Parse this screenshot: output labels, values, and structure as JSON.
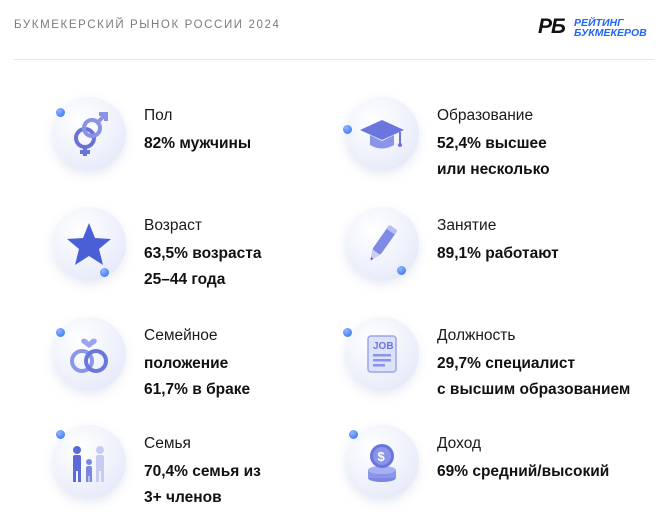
{
  "header": {
    "title": "БУКМЕКЕРСКИЙ РЫНОК РОССИИ 2024",
    "logo_mark": "РБ",
    "logo_line1": "РЕЙТИНГ",
    "logo_line2": "БУКМЕКЕРОВ"
  },
  "colors": {
    "accent": "#1e66f5",
    "icon_purple": "#6a72d8",
    "dot_blue": "#2e6cf0"
  },
  "items": [
    {
      "icon": "gender-icon",
      "label": "Пол",
      "lines": [
        "82% мужчины"
      ]
    },
    {
      "icon": "star-icon",
      "label": "Возраст",
      "lines": [
        "63,5% возраста",
        "25–44 года"
      ]
    },
    {
      "icon": "rings-icon",
      "label": "Семейное",
      "lines": [
        "положение",
        "61,7% в браке"
      ]
    },
    {
      "icon": "family-icon",
      "label": "Семья",
      "lines": [
        "70,4% семья из",
        "3+ членов"
      ]
    },
    {
      "icon": "graduation-cap-icon",
      "label": "Образование",
      "lines": [
        "52,4% высшее",
        "или несколько"
      ]
    },
    {
      "icon": "pencil-icon",
      "label": "Занятие",
      "lines": [
        "89,1% работают"
      ]
    },
    {
      "icon": "job-document-icon",
      "label": "Должность",
      "lines": [
        "29,7% специалист",
        "с высшим образованием"
      ]
    },
    {
      "icon": "coins-icon",
      "label": "Доход",
      "lines": [
        "69% средний/высокий"
      ]
    }
  ]
}
